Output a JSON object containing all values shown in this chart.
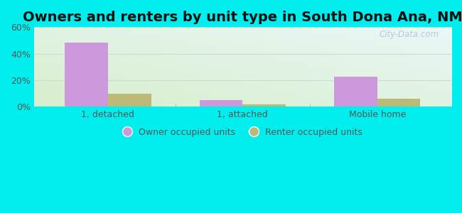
{
  "title": "Owners and renters by unit type in South Dona Ana, NM",
  "categories": [
    "1, detached",
    "1, attached",
    "Mobile home"
  ],
  "owner_values": [
    48.5,
    5.0,
    22.5
  ],
  "renter_values": [
    10.0,
    2.0,
    6.0
  ],
  "owner_color": "#cc99dd",
  "renter_color": "#bbbb77",
  "ylim": [
    0,
    60
  ],
  "yticks": [
    0,
    20,
    40,
    60
  ],
  "ytick_labels": [
    "0%",
    "20%",
    "40%",
    "60%"
  ],
  "bar_width": 0.32,
  "bg_top": "#d8f0d8",
  "bg_bottom": "#f8fff8",
  "bg_top_right": "#e8f8ff",
  "outer_bg": "#00eeee",
  "watermark": "City-Data.com",
  "legend_owner": "Owner occupied units",
  "legend_renter": "Renter occupied units",
  "title_fontsize": 14,
  "tick_fontsize": 9,
  "legend_fontsize": 9,
  "grid_color": "#ccddcc",
  "tick_color": "#555555"
}
